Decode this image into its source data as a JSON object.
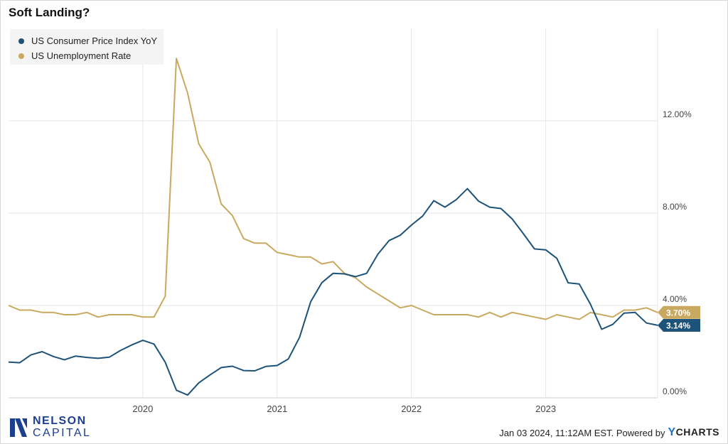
{
  "page": {
    "title": "Soft Landing?",
    "logo_line1": "NELSON",
    "logo_line2": "CAPITAL",
    "footer_text": "Jan 03 2024, 11:12AM EST. Powered by",
    "brand_y": "Y",
    "brand_rest": "CHARTS"
  },
  "chart_data": {
    "type": "line",
    "title": "Soft Landing?",
    "xlabel": "",
    "ylabel": "",
    "x_ticks": [
      "2020",
      "2021",
      "2022",
      "2023"
    ],
    "y_ticks": [
      "0.00%",
      "4.00%",
      "8.00%",
      "12.00%"
    ],
    "y_tick_values": [
      0,
      4,
      8,
      12
    ],
    "ylim": [
      0,
      16
    ],
    "x_range": [
      "2019-01",
      "2023-11"
    ],
    "grid": true,
    "legend_position": "top-left",
    "months": [
      "2019-01",
      "2019-02",
      "2019-03",
      "2019-04",
      "2019-05",
      "2019-06",
      "2019-07",
      "2019-08",
      "2019-09",
      "2019-10",
      "2019-11",
      "2019-12",
      "2020-01",
      "2020-02",
      "2020-03",
      "2020-04",
      "2020-05",
      "2020-06",
      "2020-07",
      "2020-08",
      "2020-09",
      "2020-10",
      "2020-11",
      "2020-12",
      "2021-01",
      "2021-02",
      "2021-03",
      "2021-04",
      "2021-05",
      "2021-06",
      "2021-07",
      "2021-08",
      "2021-09",
      "2021-10",
      "2021-11",
      "2021-12",
      "2022-01",
      "2022-02",
      "2022-03",
      "2022-04",
      "2022-05",
      "2022-06",
      "2022-07",
      "2022-08",
      "2022-09",
      "2022-10",
      "2022-11",
      "2022-12",
      "2023-01",
      "2023-02",
      "2023-03",
      "2023-04",
      "2023-05",
      "2023-06",
      "2023-07",
      "2023-08",
      "2023-09",
      "2023-10",
      "2023-11"
    ],
    "series": [
      {
        "name": "US Consumer Price Index YoY",
        "color": "#1d5279",
        "last_label": "3.14%",
        "values": [
          1.55,
          1.52,
          1.86,
          2.0,
          1.79,
          1.65,
          1.81,
          1.75,
          1.71,
          1.76,
          2.05,
          2.29,
          2.49,
          2.33,
          1.54,
          0.33,
          0.12,
          0.65,
          0.99,
          1.31,
          1.37,
          1.18,
          1.17,
          1.36,
          1.4,
          1.68,
          2.62,
          4.16,
          4.99,
          5.39,
          5.37,
          5.25,
          5.39,
          6.22,
          6.81,
          7.04,
          7.48,
          7.87,
          8.54,
          8.26,
          8.58,
          9.06,
          8.52,
          8.26,
          8.2,
          7.75,
          7.11,
          6.45,
          6.41,
          6.04,
          4.98,
          4.93,
          4.05,
          2.97,
          3.18,
          3.67,
          3.7,
          3.24,
          3.14
        ]
      },
      {
        "name": "US Unemployment Rate",
        "color": "#c9a95f",
        "last_label": "3.70%",
        "values": [
          4.0,
          3.8,
          3.8,
          3.7,
          3.7,
          3.6,
          3.6,
          3.7,
          3.5,
          3.6,
          3.6,
          3.6,
          3.5,
          3.5,
          4.4,
          14.7,
          13.2,
          11.0,
          10.2,
          8.4,
          7.9,
          6.9,
          6.7,
          6.7,
          6.3,
          6.2,
          6.1,
          6.1,
          5.8,
          5.9,
          5.4,
          5.2,
          4.8,
          4.5,
          4.2,
          3.9,
          4.0,
          3.8,
          3.6,
          3.6,
          3.6,
          3.6,
          3.5,
          3.7,
          3.5,
          3.7,
          3.6,
          3.5,
          3.4,
          3.6,
          3.5,
          3.4,
          3.7,
          3.6,
          3.5,
          3.8,
          3.8,
          3.9,
          3.7
        ]
      }
    ]
  }
}
